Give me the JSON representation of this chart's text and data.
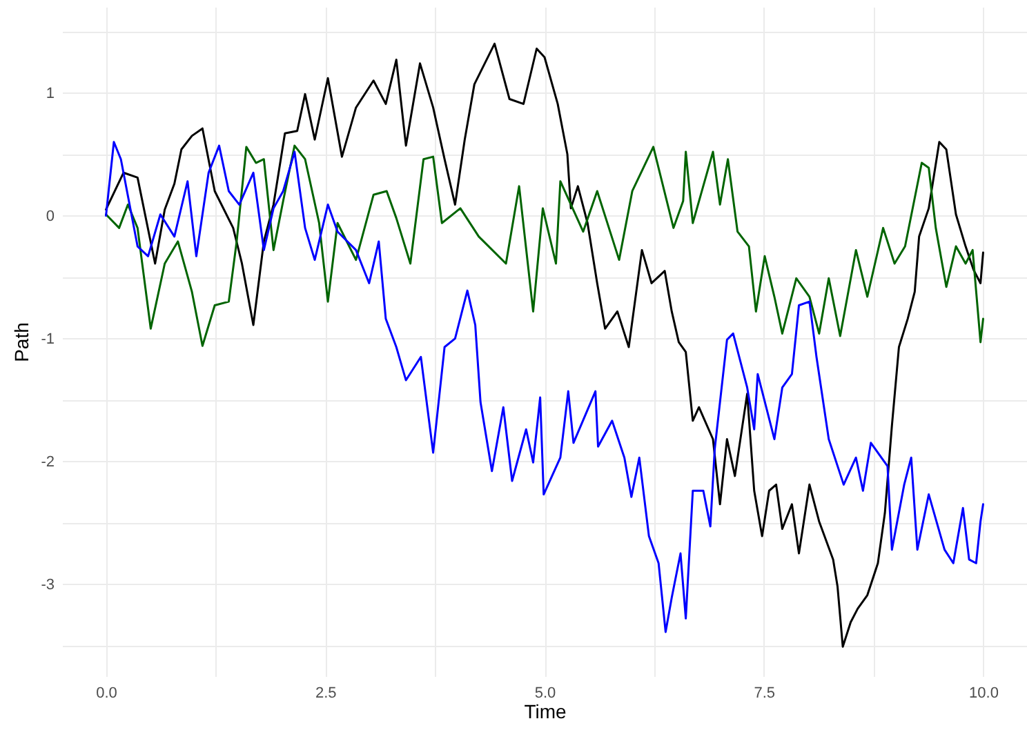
{
  "chart_data": {
    "type": "line",
    "xlabel": "Time",
    "ylabel": "Path",
    "xlim": [
      -0.5,
      10.5
    ],
    "ylim": [
      -3.75,
      1.7
    ],
    "xticks": [
      {
        "value": 0,
        "label": "0.0"
      },
      {
        "value": 1.25,
        "label": null
      },
      {
        "value": 2.5,
        "label": "2.5"
      },
      {
        "value": 3.75,
        "label": null
      },
      {
        "value": 5,
        "label": "5.0"
      },
      {
        "value": 6.25,
        "label": null
      },
      {
        "value": 7.5,
        "label": "7.5"
      },
      {
        "value": 8.75,
        "label": null
      },
      {
        "value": 10,
        "label": "10.0"
      }
    ],
    "yticks": [
      {
        "value": -3.5,
        "label": null
      },
      -3,
      {
        "value": -2.5,
        "label": null
      },
      -2,
      {
        "value": -1.5,
        "label": null
      },
      -1,
      {
        "value": -0.5,
        "label": null
      },
      0,
      {
        "value": 0.5,
        "label": null
      },
      1,
      {
        "value": 1.5,
        "label": null
      }
    ],
    "grid": true,
    "series": [
      {
        "color": "#000000",
        "x": [
          0,
          0.2,
          0.36,
          0.56,
          0.67,
          0.78,
          0.86,
          0.98,
          1.1,
          1.24,
          1.45,
          1.55,
          1.68,
          1.8,
          1.91,
          2.04,
          2.18,
          2.27,
          2.38,
          2.53,
          2.69,
          2.85,
          3.05,
          3.19,
          3.31,
          3.42,
          3.58,
          3.73,
          3.86,
          3.98,
          4.09,
          4.2,
          4.43,
          4.6,
          4.76,
          4.91,
          5.0,
          5.15,
          5.26,
          5.3,
          5.38,
          5.49,
          5.6,
          5.69,
          5.83,
          5.96,
          6.11,
          6.22,
          6.37,
          6.45,
          6.53,
          6.61,
          6.69,
          6.76,
          6.92,
          7.0,
          7.08,
          7.17,
          7.31,
          7.39,
          7.48,
          7.56,
          7.64,
          7.71,
          7.82,
          7.9,
          8.02,
          8.13,
          8.29,
          8.34,
          8.4,
          8.49,
          8.57,
          8.68,
          8.8,
          8.88,
          8.96,
          9.04,
          9.14,
          9.22,
          9.27,
          9.38,
          9.5,
          9.58,
          9.69,
          9.8,
          9.89,
          9.97,
          10.0
        ],
        "values": [
          0.05,
          0.35,
          0.31,
          -0.39,
          0.05,
          0.26,
          0.54,
          0.65,
          0.71,
          0.2,
          -0.1,
          -0.39,
          -0.89,
          -0.21,
          0.09,
          0.67,
          0.69,
          0.99,
          0.62,
          1.12,
          0.48,
          0.88,
          1.1,
          0.91,
          1.27,
          0.57,
          1.24,
          0.88,
          0.46,
          0.09,
          0.62,
          1.07,
          1.4,
          0.95,
          0.91,
          1.36,
          1.29,
          0.91,
          0.5,
          0.06,
          0.24,
          -0.06,
          -0.55,
          -0.92,
          -0.78,
          -1.07,
          -0.28,
          -0.55,
          -0.45,
          -0.78,
          -1.03,
          -1.11,
          -1.67,
          -1.56,
          -1.82,
          -2.35,
          -1.82,
          -2.12,
          -1.45,
          -2.24,
          -2.61,
          -2.24,
          -2.19,
          -2.55,
          -2.35,
          -2.75,
          -2.19,
          -2.49,
          -2.8,
          -3.02,
          -3.51,
          -3.31,
          -3.2,
          -3.09,
          -2.83,
          -2.42,
          -1.71,
          -1.07,
          -0.84,
          -0.62,
          -0.17,
          0.06,
          0.6,
          0.54,
          0.01,
          -0.25,
          -0.44,
          -0.55,
          -0.3
        ]
      },
      {
        "color": "#006400",
        "x": [
          0,
          0.15,
          0.25,
          0.36,
          0.51,
          0.67,
          0.82,
          0.98,
          1.1,
          1.24,
          1.4,
          1.49,
          1.6,
          1.71,
          1.8,
          1.91,
          2.02,
          2.15,
          2.27,
          2.43,
          2.53,
          2.64,
          2.85,
          3.05,
          3.2,
          3.31,
          3.47,
          3.62,
          3.73,
          3.83,
          4.04,
          4.25,
          4.56,
          4.71,
          4.87,
          4.98,
          5.13,
          5.18,
          5.44,
          5.6,
          5.85,
          6.0,
          6.24,
          6.47,
          6.58,
          6.61,
          6.69,
          6.92,
          7.0,
          7.09,
          7.2,
          7.33,
          7.41,
          7.51,
          7.62,
          7.71,
          7.87,
          8.02,
          8.13,
          8.24,
          8.37,
          8.55,
          8.68,
          8.86,
          8.99,
          9.11,
          9.3,
          9.38,
          9.46,
          9.58,
          9.69,
          9.8,
          9.88,
          9.97,
          10.0
        ],
        "values": [
          0.01,
          -0.1,
          0.09,
          -0.1,
          -0.92,
          -0.39,
          -0.21,
          -0.62,
          -1.06,
          -0.73,
          -0.7,
          -0.21,
          0.56,
          0.43,
          0.46,
          -0.28,
          0.12,
          0.57,
          0.46,
          -0.06,
          -0.7,
          -0.06,
          -0.36,
          0.17,
          0.2,
          -0.02,
          -0.39,
          0.46,
          0.48,
          -0.06,
          0.06,
          -0.17,
          -0.39,
          0.24,
          -0.78,
          0.06,
          -0.39,
          0.28,
          -0.13,
          0.2,
          -0.36,
          0.2,
          0.56,
          -0.1,
          0.12,
          0.52,
          -0.06,
          0.52,
          0.09,
          0.46,
          -0.13,
          -0.25,
          -0.78,
          -0.33,
          -0.66,
          -0.96,
          -0.51,
          -0.66,
          -0.96,
          -0.51,
          -0.98,
          -0.28,
          -0.66,
          -0.1,
          -0.39,
          -0.25,
          0.43,
          0.39,
          -0.1,
          -0.58,
          -0.25,
          -0.39,
          -0.28,
          -1.03,
          -0.84
        ]
      },
      {
        "color": "#0000ff",
        "x": [
          0,
          0.09,
          0.17,
          0.36,
          0.48,
          0.62,
          0.78,
          0.93,
          1.03,
          1.17,
          1.29,
          1.4,
          1.52,
          1.68,
          1.8,
          1.91,
          2.02,
          2.15,
          2.27,
          2.38,
          2.53,
          2.64,
          2.85,
          3.0,
          3.11,
          3.19,
          3.31,
          3.42,
          3.59,
          3.73,
          3.86,
          3.98,
          4.12,
          4.21,
          4.27,
          4.4,
          4.53,
          4.63,
          4.79,
          4.87,
          4.95,
          4.99,
          5.18,
          5.27,
          5.33,
          5.58,
          5.61,
          5.77,
          5.91,
          5.99,
          6.08,
          6.19,
          6.3,
          6.38,
          6.45,
          6.55,
          6.61,
          6.69,
          6.81,
          6.89,
          6.94,
          7.08,
          7.15,
          7.31,
          7.39,
          7.43,
          7.62,
          7.71,
          7.82,
          7.9,
          8.02,
          8.1,
          8.24,
          8.41,
          8.55,
          8.63,
          8.72,
          8.91,
          8.96,
          9.1,
          9.18,
          9.25,
          9.38,
          9.56,
          9.66,
          9.77,
          9.84,
          9.92,
          9.97,
          10.0
        ],
        "values": [
          0,
          0.6,
          0.46,
          -0.25,
          -0.33,
          0.01,
          -0.17,
          0.28,
          -0.33,
          0.35,
          0.57,
          0.2,
          0.09,
          0.35,
          -0.28,
          0.06,
          0.2,
          0.52,
          -0.1,
          -0.36,
          0.09,
          -0.13,
          -0.28,
          -0.55,
          -0.21,
          -0.84,
          -1.07,
          -1.34,
          -1.15,
          -1.93,
          -1.07,
          -1.0,
          -0.61,
          -0.89,
          -1.52,
          -2.08,
          -1.56,
          -2.16,
          -1.74,
          -2.01,
          -1.48,
          -2.27,
          -1.97,
          -1.43,
          -1.85,
          -1.43,
          -1.88,
          -1.67,
          -1.97,
          -2.29,
          -1.97,
          -2.61,
          -2.83,
          -3.39,
          -3.11,
          -2.75,
          -3.28,
          -2.24,
          -2.24,
          -2.53,
          -1.9,
          -1.01,
          -0.96,
          -1.4,
          -1.74,
          -1.29,
          -1.82,
          -1.4,
          -1.29,
          -0.73,
          -0.7,
          -1.15,
          -1.82,
          -2.19,
          -1.97,
          -2.24,
          -1.85,
          -2.04,
          -2.72,
          -2.19,
          -1.97,
          -2.72,
          -2.27,
          -2.72,
          -2.83,
          -2.38,
          -2.8,
          -2.83,
          -2.49,
          -2.35
        ]
      }
    ]
  }
}
